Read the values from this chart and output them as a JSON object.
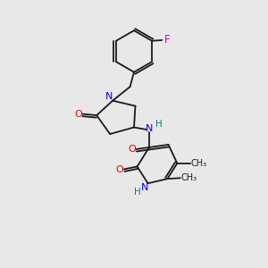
{
  "bg_color": "#e8e8e8",
  "bond_color": "#1a1a1a",
  "N_color": "#0000ee",
  "O_color": "#ee0000",
  "F_color": "#cc00cc",
  "H_color": "#008080",
  "font_size": 7.5,
  "line_width": 1.3,
  "xlim": [
    0,
    10
  ],
  "ylim": [
    0,
    10
  ]
}
